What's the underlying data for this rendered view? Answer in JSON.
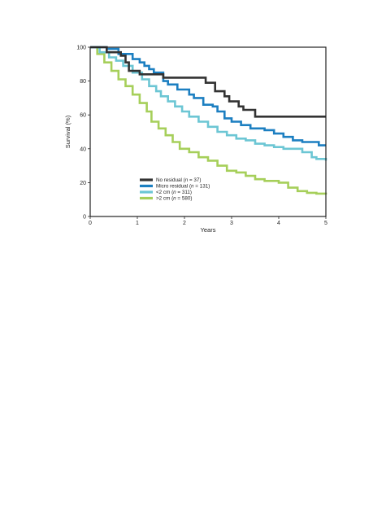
{
  "chart_data": {
    "type": "line",
    "step": true,
    "xlabel": "Years",
    "ylabel": "Survival (%)",
    "xlim": [
      0,
      5
    ],
    "ylim": [
      0,
      100
    ],
    "x_ticks": [
      0,
      1,
      2,
      3,
      4,
      5
    ],
    "y_ticks": [
      0,
      20,
      40,
      60,
      80,
      100
    ],
    "grid": false,
    "legend_position": "bottom-left",
    "series": [
      {
        "name": "No residual",
        "n_label": "n = 37",
        "color": "#333333",
        "x": [
          0,
          0.35,
          0.65,
          0.75,
          0.82,
          1.05,
          1.5,
          1.55,
          2.45,
          2.65,
          2.85,
          2.95,
          3.05,
          3.15,
          3.25,
          3.5,
          4.05,
          5.0
        ],
        "y": [
          100,
          97,
          95,
          91,
          86,
          84,
          84,
          82,
          79,
          74,
          71,
          68,
          68,
          65,
          63,
          59,
          59,
          59
        ]
      },
      {
        "name": "Micro residual",
        "n_label": "n = 131",
        "color": "#1c7fc1",
        "x": [
          0,
          0.35,
          0.6,
          0.9,
          1.05,
          1.15,
          1.25,
          1.35,
          1.55,
          1.65,
          1.85,
          2.1,
          2.2,
          2.4,
          2.6,
          2.7,
          2.85,
          3.0,
          3.2,
          3.4,
          3.7,
          3.9,
          4.1,
          4.3,
          4.5,
          4.6,
          4.85,
          5.0
        ],
        "y": [
          100,
          99,
          96,
          93,
          91,
          89,
          87,
          85,
          80,
          78,
          75,
          72,
          70,
          66,
          65,
          62,
          58,
          56,
          54,
          52,
          51,
          49,
          47,
          45,
          44,
          44,
          42,
          42
        ]
      },
      {
        "name": "<2 cm",
        "n_label": "n = 311",
        "color": "#6cc6d4",
        "x": [
          0,
          0.2,
          0.4,
          0.55,
          0.7,
          0.9,
          1.1,
          1.25,
          1.4,
          1.5,
          1.65,
          1.8,
          1.95,
          2.1,
          2.3,
          2.5,
          2.7,
          2.9,
          3.1,
          3.3,
          3.5,
          3.7,
          3.9,
          4.1,
          4.3,
          4.5,
          4.7,
          4.8,
          5.0
        ],
        "y": [
          100,
          97,
          94,
          92,
          89,
          85,
          81,
          77,
          74,
          71,
          68,
          65,
          62,
          59,
          56,
          53,
          50,
          48,
          46,
          45,
          43,
          42,
          41,
          40,
          40,
          38,
          35,
          34,
          33
        ]
      },
      {
        "name": ">2 cm",
        "n_label": "n = 580",
        "color": "#a6cf5a",
        "x": [
          0,
          0.15,
          0.3,
          0.45,
          0.6,
          0.75,
          0.9,
          1.05,
          1.2,
          1.3,
          1.45,
          1.6,
          1.75,
          1.9,
          2.1,
          2.3,
          2.5,
          2.7,
          2.9,
          3.1,
          3.3,
          3.5,
          3.7,
          4.0,
          4.2,
          4.4,
          4.6,
          4.8,
          5.0
        ],
        "y": [
          100,
          96,
          91,
          86,
          81,
          77,
          72,
          67,
          62,
          56,
          52,
          48,
          44,
          40,
          38,
          35,
          33,
          30,
          27,
          26,
          24,
          22,
          21,
          20,
          17,
          15,
          14,
          13.5,
          13
        ]
      }
    ]
  }
}
